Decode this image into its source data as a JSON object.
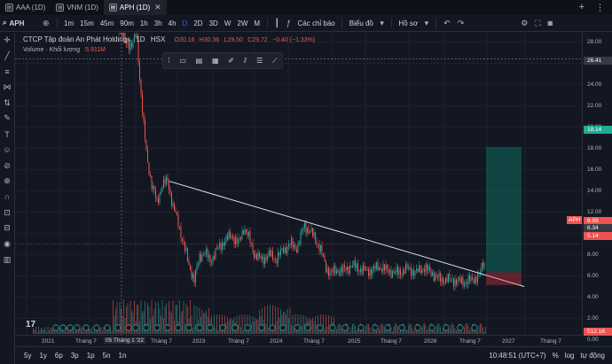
{
  "tabs": [
    {
      "label": "AAA (1D)",
      "active": false
    },
    {
      "label": "VNM (1D)",
      "active": false
    },
    {
      "label": "APH (1D)",
      "active": true
    }
  ],
  "toolbar": {
    "symbol": "APH",
    "intervals": [
      "1m",
      "15m",
      "45m",
      "90m",
      "1h",
      "3h",
      "4h",
      "D",
      "2D",
      "3D",
      "W",
      "2W",
      "M"
    ],
    "active_interval": "D",
    "indicators_label": "Các chỉ báo",
    "templates_label": "Biểu đồ",
    "profile_label": "Hồ sơ"
  },
  "legend": {
    "name": "CTCP Tập đoàn An Phát Holdings",
    "interval": "1D",
    "exchange": "HSX",
    "open": "O30.16",
    "high": "H30.36",
    "low": "L29.50",
    "close": "C29.72",
    "change": "−0.40 (−1.33%)",
    "volume_label": "Volume · Khối lượng",
    "volume_value": "5.911M"
  },
  "price_scale": {
    "labels": [
      "28.00",
      "26.41",
      "24.00",
      "22.00",
      "20.00",
      "18.00",
      "16.00",
      "14.00",
      "12.00",
      "10.00",
      "8.00",
      "6.00",
      "4.00",
      "2.00",
      "0.00"
    ],
    "tags": [
      {
        "text": "26.41",
        "color": "#363a45"
      },
      {
        "text": "18.14",
        "color": "#22ab94"
      },
      {
        "text": "8.99",
        "color": "#ef5350"
      },
      {
        "text": "6.34",
        "color": "#363a45"
      },
      {
        "text": "5.14",
        "color": "#ef5350"
      },
      {
        "text": "512.1K",
        "color": "#ef5350"
      }
    ],
    "aph_tag": "APH"
  },
  "time_scale": [
    "2021",
    "Tháng 7",
    "05 Tháng 1 '22",
    "Tháng 7",
    "2023",
    "Tháng 7",
    "2024",
    "Tháng 7",
    "2025",
    "Tháng 7",
    "2026",
    "Tháng 7",
    "2027",
    "Tháng 7"
  ],
  "bottom": {
    "ranges": [
      "5y",
      "1y",
      "6p",
      "3p",
      "1p",
      "5n",
      "1n"
    ],
    "clock": "10:48:51 (UTC+7)",
    "percent": "%",
    "log": "log",
    "auto": "tự động"
  },
  "colors": {
    "background": "#131722",
    "up": "#26a69a",
    "down": "#ef5350",
    "accent": "#2962ff"
  },
  "icons": {
    "left_toolbar": [
      "crosshair-icon",
      "trendline-icon",
      "fib-icon",
      "pattern-icon",
      "prediction-icon",
      "brush-icon",
      "text-icon",
      "emoji-icon",
      "ruler-icon",
      "zoom-icon",
      "magnet-icon",
      "lock-icon",
      "lock-drawings-icon",
      "eye-icon",
      "trash-icon"
    ]
  }
}
